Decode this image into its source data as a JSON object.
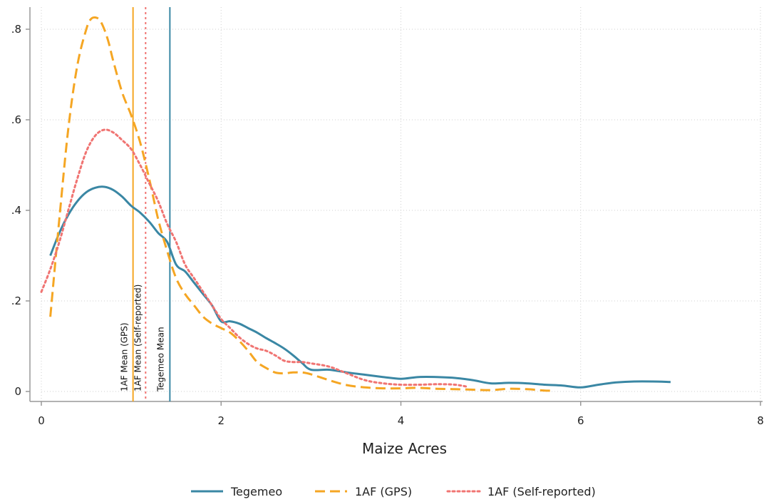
{
  "chart_data": {
    "type": "line",
    "xlabel": "Maize Acres",
    "ylabel": "",
    "xlim": [
      0,
      8
    ],
    "ylim": [
      0,
      0.85
    ],
    "x_ticks": [
      0,
      2,
      4,
      6,
      8
    ],
    "x_tick_labels": [
      "0",
      "2",
      "4",
      "6",
      "8"
    ],
    "y_ticks": [
      0,
      0.2,
      0.4,
      0.6,
      0.8
    ],
    "y_tick_labels": [
      "0",
      ".2",
      ".4",
      ".6",
      ".8"
    ],
    "grid": true,
    "legend_position": "bottom",
    "series": [
      {
        "name": "Tegemeo",
        "color": "#3a87a4",
        "dash": "solid",
        "x": [
          0.1,
          0.2,
          0.3,
          0.4,
          0.5,
          0.6,
          0.7,
          0.8,
          0.9,
          1.0,
          1.1,
          1.2,
          1.3,
          1.4,
          1.5,
          1.6,
          1.7,
          1.8,
          1.9,
          2.0,
          2.1,
          2.2,
          2.3,
          2.4,
          2.5,
          2.6,
          2.7,
          2.8,
          2.9,
          3.0,
          3.2,
          3.4,
          3.6,
          3.8,
          4.0,
          4.2,
          4.4,
          4.6,
          4.8,
          5.0,
          5.2,
          5.4,
          5.6,
          5.8,
          6.0,
          6.2,
          6.4,
          6.6,
          6.8,
          7.0
        ],
        "y": [
          0.3,
          0.35,
          0.39,
          0.42,
          0.44,
          0.45,
          0.452,
          0.445,
          0.43,
          0.41,
          0.395,
          0.375,
          0.35,
          0.33,
          0.28,
          0.265,
          0.24,
          0.215,
          0.19,
          0.155,
          0.155,
          0.15,
          0.14,
          0.13,
          0.118,
          0.107,
          0.095,
          0.08,
          0.063,
          0.048,
          0.048,
          0.042,
          0.037,
          0.032,
          0.028,
          0.032,
          0.032,
          0.03,
          0.025,
          0.018,
          0.019,
          0.018,
          0.015,
          0.013,
          0.009,
          0.015,
          0.02,
          0.022,
          0.022,
          0.021
        ]
      },
      {
        "name": "1AF (GPS)",
        "color": "#f5a623",
        "dash": "dashed",
        "x": [
          0.1,
          0.2,
          0.3,
          0.4,
          0.5,
          0.55,
          0.6,
          0.65,
          0.7,
          0.75,
          0.8,
          0.9,
          1.0,
          1.1,
          1.2,
          1.3,
          1.4,
          1.5,
          1.6,
          1.7,
          1.8,
          1.9,
          2.0,
          2.1,
          2.2,
          2.3,
          2.4,
          2.5,
          2.6,
          2.7,
          2.8,
          2.9,
          3.0,
          3.2,
          3.4,
          3.6,
          3.8,
          4.0,
          4.2,
          4.4,
          4.6,
          4.8,
          5.0,
          5.2,
          5.4,
          5.6,
          5.7
        ],
        "y": [
          0.165,
          0.38,
          0.58,
          0.72,
          0.8,
          0.822,
          0.826,
          0.82,
          0.8,
          0.77,
          0.73,
          0.66,
          0.61,
          0.55,
          0.47,
          0.38,
          0.31,
          0.25,
          0.215,
          0.19,
          0.165,
          0.15,
          0.14,
          0.13,
          0.112,
          0.09,
          0.065,
          0.052,
          0.042,
          0.04,
          0.042,
          0.042,
          0.038,
          0.025,
          0.014,
          0.009,
          0.007,
          0.007,
          0.008,
          0.006,
          0.005,
          0.004,
          0.003,
          0.006,
          0.005,
          0.002,
          0.002
        ]
      },
      {
        "name": "1AF (Self-reported)",
        "color": "#f07472",
        "dash": "dotted",
        "x": [
          0.0,
          0.1,
          0.2,
          0.3,
          0.4,
          0.5,
          0.6,
          0.7,
          0.8,
          0.9,
          1.0,
          1.1,
          1.2,
          1.3,
          1.4,
          1.5,
          1.6,
          1.7,
          1.8,
          1.9,
          2.0,
          2.1,
          2.2,
          2.3,
          2.4,
          2.5,
          2.6,
          2.7,
          2.8,
          2.9,
          3.0,
          3.2,
          3.4,
          3.6,
          3.8,
          4.0,
          4.2,
          4.4,
          4.6,
          4.75
        ],
        "y": [
          0.22,
          0.27,
          0.33,
          0.4,
          0.47,
          0.53,
          0.565,
          0.578,
          0.572,
          0.555,
          0.535,
          0.5,
          0.46,
          0.42,
          0.37,
          0.33,
          0.28,
          0.25,
          0.22,
          0.19,
          0.16,
          0.14,
          0.12,
          0.105,
          0.095,
          0.09,
          0.08,
          0.068,
          0.065,
          0.065,
          0.062,
          0.055,
          0.04,
          0.025,
          0.018,
          0.015,
          0.015,
          0.016,
          0.015,
          0.01
        ]
      }
    ],
    "reference_lines": [
      {
        "name": "1AF Mean (GPS)",
        "x": 1.02,
        "color": "#f5a623",
        "dash": "solid",
        "label": "1AF Mean (GPS)"
      },
      {
        "name": "1AF Mean (Self-reported)",
        "x": 1.16,
        "color": "#f07472",
        "dash": "dotted",
        "label": "1AF Mean (Self-reported)"
      },
      {
        "name": "Tegemeo Mean",
        "x": 1.43,
        "color": "#3a87a4",
        "dash": "solid",
        "label": "Tegemeo Mean"
      }
    ]
  }
}
